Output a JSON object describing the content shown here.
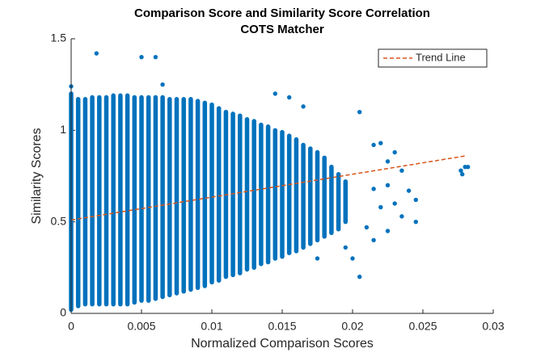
{
  "chart_data": {
    "type": "scatter",
    "title": "Comparison Score and Similarity Score Correlation",
    "subtitle": "COTS Matcher",
    "x_label": "Normalized Comparison Scores",
    "y_label": "Similarity Scores",
    "xlim": [
      0,
      0.03
    ],
    "ylim": [
      0,
      1.5
    ],
    "xticks": [
      0,
      0.005,
      0.01,
      0.015,
      0.02,
      0.025,
      0.03
    ],
    "yticks": [
      0,
      0.5,
      1,
      1.5
    ],
    "grid": false,
    "legend": "northeast",
    "color": "#0072bd",
    "columns": {
      "x": [
        0,
        0.0005,
        0.001,
        0.0015,
        0.002,
        0.0025,
        0.003,
        0.0035,
        0.004,
        0.0045,
        0.005,
        0.0055,
        0.006,
        0.0065,
        0.007,
        0.0075,
        0.008,
        0.0085,
        0.009,
        0.0095,
        0.01,
        0.0105,
        0.011,
        0.0115,
        0.012,
        0.0125,
        0.013,
        0.0135,
        0.014,
        0.0145,
        0.015,
        0.0155,
        0.016,
        0.0165,
        0.017,
        0.0175,
        0.018,
        0.0185,
        0.019,
        0.0195
      ],
      "low": [
        0.02,
        0.04,
        0.05,
        0.05,
        0.05,
        0.05,
        0.05,
        0.05,
        0.05,
        0.06,
        0.07,
        0.07,
        0.08,
        0.09,
        0.1,
        0.11,
        0.12,
        0.13,
        0.14,
        0.15,
        0.17,
        0.18,
        0.2,
        0.21,
        0.22,
        0.24,
        0.25,
        0.27,
        0.28,
        0.3,
        0.31,
        0.33,
        0.34,
        0.36,
        0.38,
        0.4,
        0.42,
        0.44,
        0.46,
        0.5
      ],
      "high": [
        1.2,
        1.17,
        1.17,
        1.18,
        1.18,
        1.18,
        1.19,
        1.19,
        1.19,
        1.18,
        1.18,
        1.18,
        1.18,
        1.18,
        1.17,
        1.17,
        1.17,
        1.17,
        1.16,
        1.15,
        1.14,
        1.12,
        1.1,
        1.09,
        1.08,
        1.06,
        1.05,
        1.03,
        1.02,
        1.0,
        0.99,
        0.97,
        0.95,
        0.92,
        0.9,
        0.88,
        0.85,
        0.8,
        0.76,
        0.72
      ]
    },
    "outliers": {
      "x": [
        0.0018,
        0.005,
        0.006,
        0,
        0.0065,
        0.0145,
        0.0155,
        0.0205,
        0.0165,
        0.0215,
        0.022,
        0.0225,
        0.023,
        0.0235,
        0.024,
        0.0245,
        0.0245,
        0.0235,
        0.023,
        0.0225,
        0.021,
        0.02,
        0.0195,
        0.0175,
        0.0225,
        0.0215,
        0.028,
        0.0277,
        0.0282,
        0.0278,
        0.0205,
        0.0215,
        0.022
      ],
      "y": [
        1.42,
        1.4,
        1.4,
        1.24,
        1.25,
        1.2,
        1.18,
        1.1,
        1.13,
        0.92,
        0.93,
        0.83,
        0.88,
        0.78,
        0.67,
        0.62,
        0.5,
        0.53,
        0.6,
        0.45,
        0.47,
        0.3,
        0.36,
        0.3,
        0.7,
        0.4,
        0.8,
        0.78,
        0.8,
        0.76,
        0.2,
        0.68,
        0.58
      ]
    },
    "trend": {
      "name": "Trend Line",
      "color": "#d95319",
      "x": [
        0,
        0.028
      ],
      "y": [
        0.51,
        0.86
      ]
    }
  }
}
